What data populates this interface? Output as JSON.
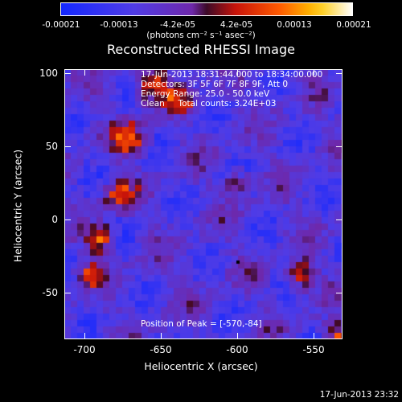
{
  "colorbar": {
    "ticks": [
      "-0.00021",
      "-0.00013",
      "-4.2e-05",
      "4.2e-05",
      "0.00013",
      "0.00021"
    ],
    "units": "(photons cm⁻² s⁻¹ asec⁻²)"
  },
  "title": "Reconstructed RHESSI Image",
  "info": {
    "time": "17-Jun-2013 18:31:44.000 to 18:34:00.000",
    "detectors": "Detectors: 3F 5F 6F 7F 8F 9F, Att 0",
    "energy": "Energy Range: 25.0 - 50.0 keV",
    "clean": "Clean     Total counts: 3.24E+03",
    "peak": "Position of Peak = [-570,-84]"
  },
  "axes": {
    "xlabel": "Heliocentric X (arcsec)",
    "ylabel": "Heliocentric Y (arcsec)",
    "xticks": [
      "-700",
      "-650",
      "-600",
      "-550"
    ],
    "yticks": [
      "100",
      "50",
      "0",
      "-50"
    ]
  },
  "timestamp": "17-Jun-2013 23:32"
}
